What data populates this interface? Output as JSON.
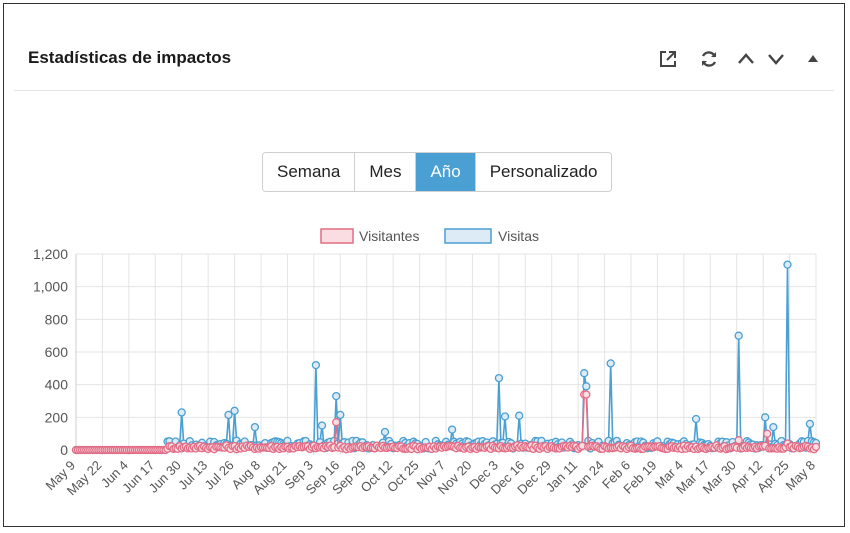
{
  "header": {
    "title": "Estadísticas de impactos",
    "tools": [
      "external-link-icon",
      "refresh-icon",
      "chevron-up-icon",
      "chevron-down-icon",
      "caret-up-icon"
    ]
  },
  "range_buttons": {
    "items": [
      {
        "label": "Semana",
        "active": false
      },
      {
        "label": "Mes",
        "active": false
      },
      {
        "label": "Año",
        "active": true
      },
      {
        "label": "Personalizado",
        "active": false
      }
    ]
  },
  "colors": {
    "visitantes": "#e26d86",
    "visitantes_fill": "#f9dde3",
    "visitas": "#4a9fd3",
    "visitas_fill": "#dcebf6",
    "active_button": "#4a9fd3"
  },
  "chart_data": {
    "type": "line",
    "legend": [
      "Visitantes",
      "Visitas"
    ],
    "legend_placement": "top",
    "grid": true,
    "ylim": [
      0,
      1200
    ],
    "yticks": [
      "0",
      "200",
      "400",
      "600",
      "800",
      "1,000",
      "1,200"
    ],
    "ytick_values": [
      0,
      200,
      400,
      600,
      800,
      1000,
      1200
    ],
    "xticks": [
      "May 9",
      "May 22",
      "Jun 4",
      "Jun 17",
      "Jun 30",
      "Jul 13",
      "Jul 26",
      "Aug 8",
      "Aug 21",
      "Sep 3",
      "Sep 16",
      "Sep 29",
      "Oct 12",
      "Oct 25",
      "Nov 7",
      "Nov 20",
      "Dec 3",
      "Dec 16",
      "Dec 29",
      "Jan 11",
      "Jan 24",
      "Feb 6",
      "Feb 19",
      "Mar 4",
      "Mar 17",
      "Mar 30",
      "Apr 12",
      "Apr 25",
      "May 8"
    ],
    "days": 365,
    "series": [
      {
        "name": "Visitas",
        "baseline": 30,
        "active_from_day": 45,
        "peaks": [
          {
            "day": 52,
            "value": 230
          },
          {
            "day": 78,
            "value": 240
          },
          {
            "day": 75,
            "value": 215
          },
          {
            "day": 88,
            "value": 140
          },
          {
            "day": 118,
            "value": 520
          },
          {
            "day": 121,
            "value": 150
          },
          {
            "day": 128,
            "value": 330
          },
          {
            "day": 130,
            "value": 215
          },
          {
            "day": 152,
            "value": 110
          },
          {
            "day": 185,
            "value": 125
          },
          {
            "day": 208,
            "value": 440
          },
          {
            "day": 211,
            "value": 205
          },
          {
            "day": 218,
            "value": 210
          },
          {
            "day": 250,
            "value": 470
          },
          {
            "day": 251,
            "value": 390
          },
          {
            "day": 263,
            "value": 530
          },
          {
            "day": 305,
            "value": 190
          },
          {
            "day": 326,
            "value": 700
          },
          {
            "day": 339,
            "value": 200
          },
          {
            "day": 343,
            "value": 140
          },
          {
            "day": 350,
            "value": 1135
          },
          {
            "day": 361,
            "value": 160
          }
        ]
      },
      {
        "name": "Visitantes",
        "baseline": 15,
        "active_from_day": 45,
        "peaks": [
          {
            "day": 128,
            "value": 170
          },
          {
            "day": 250,
            "value": 340
          },
          {
            "day": 251,
            "value": 340
          },
          {
            "day": 326,
            "value": 60
          },
          {
            "day": 340,
            "value": 100
          },
          {
            "day": 350,
            "value": 40
          }
        ]
      }
    ]
  }
}
